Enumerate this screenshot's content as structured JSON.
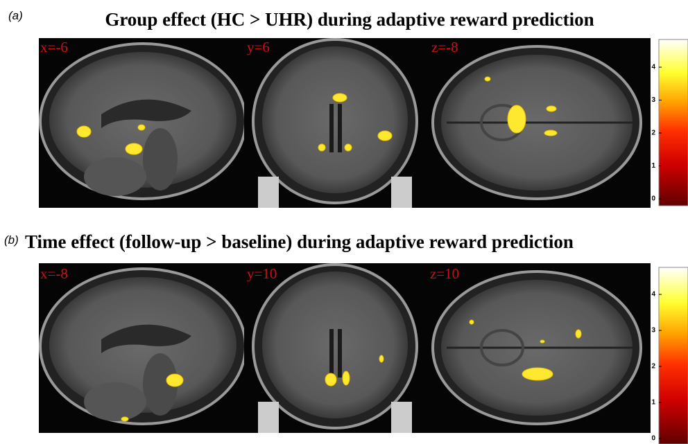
{
  "panels": [
    {
      "label": "(a)",
      "title": "Group effect (HC > UHR) during adaptive reward prediction",
      "slices": [
        "x=-6",
        "y=6",
        "z=-8"
      ],
      "colorbar_ticks": [
        0,
        1,
        2,
        3,
        4
      ]
    },
    {
      "label": "(b)",
      "title": "Time effect (follow-up > baseline) during adaptive reward prediction",
      "slices": [
        "x=-8",
        "y=10",
        "z=10"
      ],
      "colorbar_ticks": [
        0,
        1,
        2,
        3,
        4
      ]
    }
  ]
}
